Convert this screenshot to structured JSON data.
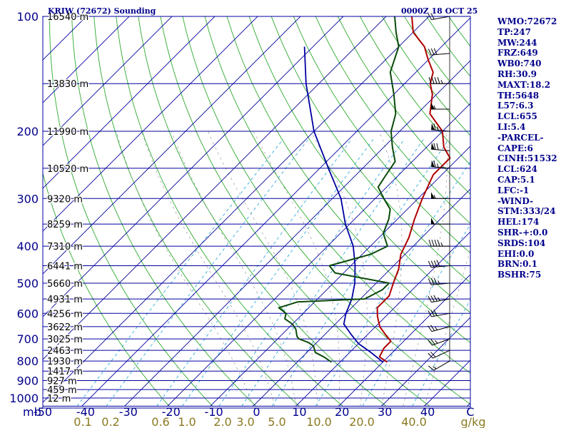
{
  "header": {
    "title": "KRIW (72672) Sounding",
    "time": "0000Z 18 OCT 25"
  },
  "colors": {
    "temperature": "#b00000",
    "dewpoint": "#0a4a0a",
    "parcel": "#0000a0",
    "isobar": "#0000a0",
    "isotherm": "#0000a0",
    "dry_adiabat": "#2eaa2e",
    "mixing_ratio": "#33aadd",
    "text": "#00008b"
  },
  "indices": [
    {
      "label": "WMO:72672"
    },
    {
      "label": "TP:247"
    },
    {
      "label": "MW:244"
    },
    {
      "label": "FRZ:649"
    },
    {
      "label": "WB0:740"
    },
    {
      "label": "RH:30.9"
    },
    {
      "label": "MAXT:18.2"
    },
    {
      "label": "TH:5648"
    },
    {
      "label": "L57:6.3"
    },
    {
      "label": "LCL:655"
    },
    {
      "label": "LI:5.4"
    },
    {
      "label": "-PARCEL-"
    },
    {
      "label": "CAPE:6"
    },
    {
      "label": "CINH:51532"
    },
    {
      "label": "LCL:624"
    },
    {
      "label": "CAP:5.1"
    },
    {
      "label": "LFC:-1"
    },
    {
      "label": "-WIND-"
    },
    {
      "label": "STM:333/24"
    },
    {
      "label": "HEL:174"
    },
    {
      "label": "SHR-+:0.0"
    },
    {
      "label": "SRDS:104"
    },
    {
      "label": "EHI:0.0"
    },
    {
      "label": "BRN:0.1"
    },
    {
      "label": "BSHR:75"
    }
  ],
  "chart_data": {
    "type": "line",
    "title": "KRIW (72672) Sounding",
    "subtitle": "0000Z 18 OCT 25",
    "xlabel": "C",
    "x2label": "g/kg",
    "ylabel": "mb",
    "xlim": [
      -50,
      50
    ],
    "ylim": [
      1000,
      100
    ],
    "pressure_ticks": [
      "100",
      "200",
      "300",
      "400",
      "500",
      "600",
      "700",
      "800",
      "900",
      "1000"
    ],
    "temp_ticks": [
      "-50",
      "-40",
      "-30",
      "-20",
      "-10",
      "0",
      "10",
      "20",
      "30",
      "40",
      "C"
    ],
    "height_labels": [
      {
        "p": 100,
        "text": "16540 m"
      },
      {
        "p": 150,
        "text": "13830 m"
      },
      {
        "p": 200,
        "text": "11990 m"
      },
      {
        "p": 250,
        "text": "10520 m"
      },
      {
        "p": 300,
        "text": "9320 m"
      },
      {
        "p": 350,
        "text": "8259 m"
      },
      {
        "p": 400,
        "text": "7310 m"
      },
      {
        "p": 450,
        "text": "6441 m"
      },
      {
        "p": 500,
        "text": "5660 m"
      },
      {
        "p": 550,
        "text": "4931 m"
      },
      {
        "p": 600,
        "text": "4256 m"
      },
      {
        "p": 650,
        "text": "3622 m"
      },
      {
        "p": 700,
        "text": "3025 m"
      },
      {
        "p": 750,
        "text": "2463 m"
      },
      {
        "p": 800,
        "text": "1930 m"
      },
      {
        "p": 850,
        "text": "1417 m"
      },
      {
        "p": 900,
        "text": "927 m"
      },
      {
        "p": 950,
        "text": "459 m"
      },
      {
        "p": 1000,
        "text": "12 m"
      }
    ],
    "mixing_ratio_labels": [
      "0.1",
      "0.2",
      "0.6",
      "1.0",
      "2.0",
      "3.0",
      "5.0",
      "10.0",
      "20.0",
      "40.0"
    ],
    "series": [
      {
        "name": "",
        "kind": "temperature",
        "points": [
          [
            805,
            21
          ],
          [
            780,
            18
          ],
          [
            740,
            17
          ],
          [
            710,
            17
          ],
          [
            680,
            14
          ],
          [
            650,
            11
          ],
          [
            610,
            8
          ],
          [
            580,
            6
          ],
          [
            540,
            6
          ],
          [
            500,
            4
          ],
          [
            460,
            2
          ],
          [
            420,
            -1
          ],
          [
            380,
            -3
          ],
          [
            340,
            -6
          ],
          [
            300,
            -9
          ],
          [
            260,
            -12
          ],
          [
            250,
            -12
          ],
          [
            235,
            -12
          ],
          [
            220,
            -16
          ],
          [
            200,
            -20
          ],
          [
            180,
            -27
          ],
          [
            160,
            -31
          ],
          [
            150,
            -34
          ],
          [
            140,
            -36
          ],
          [
            130,
            -40
          ],
          [
            120,
            -44
          ],
          [
            110,
            -50
          ],
          [
            100,
            -54
          ]
        ]
      },
      {
        "name": "",
        "kind": "dewpoint",
        "points": [
          [
            805,
            8
          ],
          [
            780,
            5
          ],
          [
            760,
            2
          ],
          [
            730,
            0
          ],
          [
            715,
            -2
          ],
          [
            700,
            -5
          ],
          [
            690,
            -6
          ],
          [
            675,
            -7
          ],
          [
            660,
            -8
          ],
          [
            640,
            -10
          ],
          [
            620,
            -13
          ],
          [
            600,
            -14
          ],
          [
            580,
            -17
          ],
          [
            560,
            -14
          ],
          [
            550,
            1
          ],
          [
            520,
            3
          ],
          [
            500,
            3
          ],
          [
            470,
            -12
          ],
          [
            450,
            -15
          ],
          [
            420,
            -8
          ],
          [
            400,
            -6
          ],
          [
            370,
            -10
          ],
          [
            340,
            -12
          ],
          [
            320,
            -14
          ],
          [
            300,
            -18
          ],
          [
            280,
            -22
          ],
          [
            260,
            -23
          ],
          [
            240,
            -24
          ],
          [
            220,
            -28
          ],
          [
            200,
            -32
          ],
          [
            180,
            -35
          ],
          [
            160,
            -40
          ],
          [
            140,
            -46
          ],
          [
            120,
            -50
          ],
          [
            110,
            -54
          ],
          [
            100,
            -58
          ]
        ]
      },
      {
        "name": "",
        "kind": "parcel",
        "points": [
          [
            805,
            20
          ],
          [
            760,
            15
          ],
          [
            720,
            10
          ],
          [
            680,
            6
          ],
          [
            640,
            2
          ],
          [
            600,
            0
          ],
          [
            550,
            -2
          ],
          [
            500,
            -5
          ],
          [
            450,
            -9
          ],
          [
            400,
            -14
          ],
          [
            350,
            -21
          ],
          [
            300,
            -28
          ],
          [
            250,
            -38
          ],
          [
            200,
            -50
          ],
          [
            150,
            -63
          ],
          [
            120,
            -72
          ]
        ]
      }
    ],
    "winds": [
      {
        "p": 800,
        "dir": 240,
        "spd": 15
      },
      {
        "p": 750,
        "dir": 245,
        "spd": 20
      },
      {
        "p": 700,
        "dir": 250,
        "spd": 25
      },
      {
        "p": 650,
        "dir": 255,
        "spd": 25
      },
      {
        "p": 600,
        "dir": 260,
        "spd": 30
      },
      {
        "p": 550,
        "dir": 260,
        "spd": 35
      },
      {
        "p": 500,
        "dir": 265,
        "spd": 35
      },
      {
        "p": 450,
        "dir": 265,
        "spd": 40
      },
      {
        "p": 400,
        "dir": 270,
        "spd": 45
      },
      {
        "p": 350,
        "dir": 270,
        "spd": 50
      },
      {
        "p": 300,
        "dir": 270,
        "spd": 55
      },
      {
        "p": 250,
        "dir": 275,
        "spd": 65
      },
      {
        "p": 225,
        "dir": 275,
        "spd": 70
      },
      {
        "p": 200,
        "dir": 275,
        "spd": 65
      },
      {
        "p": 175,
        "dir": 270,
        "spd": 55
      },
      {
        "p": 150,
        "dir": 270,
        "spd": 45
      },
      {
        "p": 125,
        "dir": 265,
        "spd": 30
      },
      {
        "p": 100,
        "dir": 260,
        "spd": 20
      }
    ]
  }
}
